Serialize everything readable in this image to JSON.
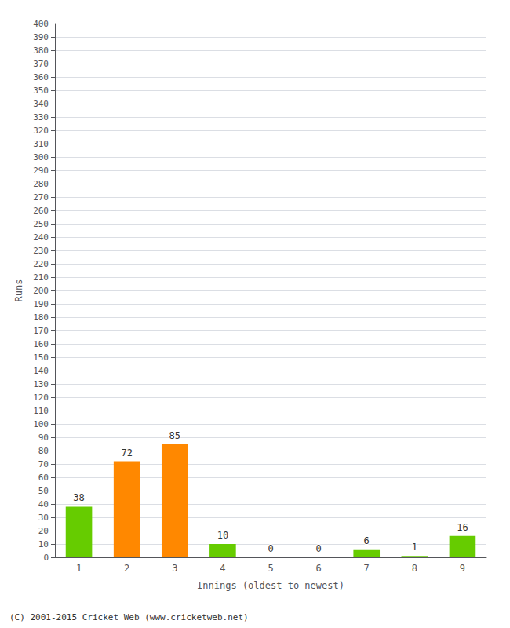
{
  "chart_data": {
    "type": "bar",
    "xlabel": "Innings (oldest to newest)",
    "ylabel": "Runs",
    "annotation": "(C) 2001-2015 Cricket Web (www.cricketweb.net)",
    "categories": [
      "1",
      "2",
      "3",
      "4",
      "5",
      "6",
      "7",
      "8",
      "9"
    ],
    "values": [
      38,
      72,
      85,
      10,
      0,
      0,
      6,
      1,
      16
    ],
    "colors": [
      "#66cc00",
      "#ff8800",
      "#ff8800",
      "#66cc00",
      "#66cc00",
      "#66cc00",
      "#66cc00",
      "#66cc00",
      "#66cc00"
    ],
    "ylim": [
      0,
      400
    ],
    "yticks": [
      0,
      10,
      20,
      30,
      40,
      50,
      60,
      70,
      80,
      90,
      100,
      110,
      120,
      130,
      140,
      150,
      160,
      170,
      180,
      190,
      200,
      210,
      220,
      230,
      240,
      250,
      260,
      270,
      280,
      290,
      300,
      310,
      320,
      330,
      340,
      350,
      360,
      370,
      380,
      390,
      400
    ],
    "grid": true,
    "data_labels": true
  }
}
